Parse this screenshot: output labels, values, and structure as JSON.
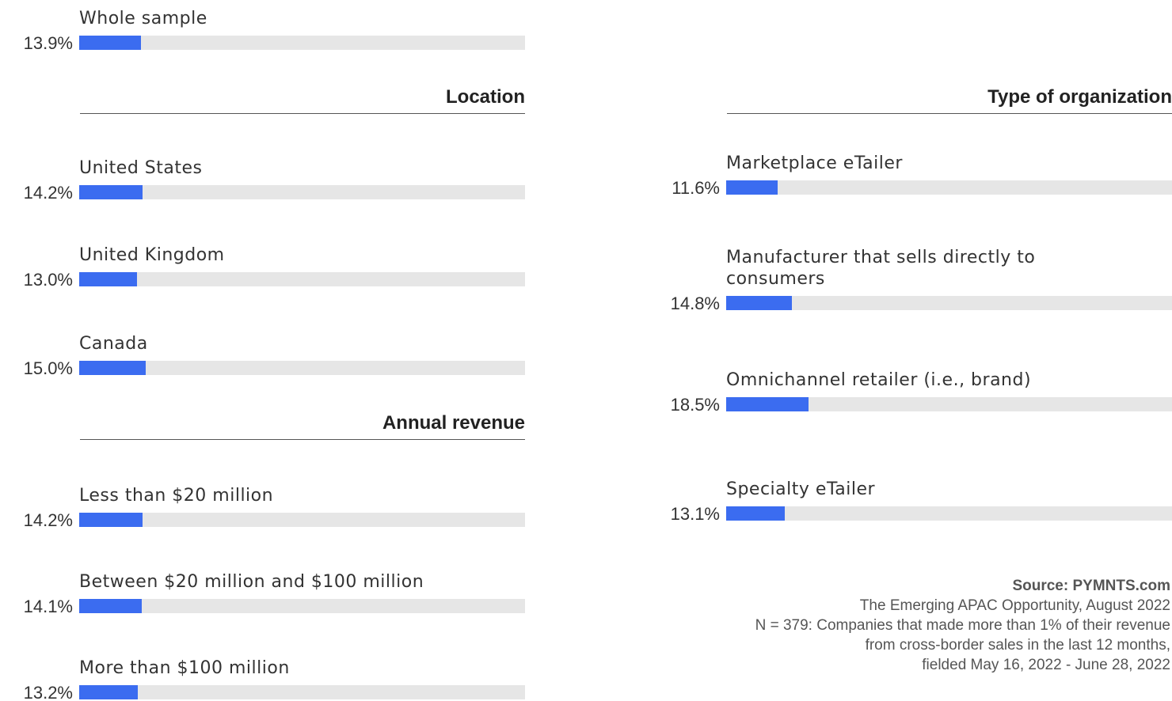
{
  "chart_data": [
    {
      "type": "bar",
      "categories": [
        "Whole sample"
      ],
      "values": [
        13.9
      ],
      "value_labels": [
        "13.9%"
      ],
      "xlim": [
        0,
        100
      ],
      "color": "#3b6cf0"
    },
    {
      "type": "bar",
      "title": "Location",
      "categories": [
        "United States",
        "United Kingdom",
        "Canada"
      ],
      "values": [
        14.2,
        13.0,
        15.0
      ],
      "value_labels": [
        "14.2%",
        "13.0%",
        "15.0%"
      ],
      "xlim": [
        0,
        100
      ],
      "color": "#3b6cf0"
    },
    {
      "type": "bar",
      "title": "Annual revenue",
      "categories": [
        "Less than $20 million",
        "Between $20 million and $100 million",
        "More than $100 million"
      ],
      "values": [
        14.2,
        14.1,
        13.2
      ],
      "value_labels": [
        "14.2%",
        "14.1%",
        "13.2%"
      ],
      "xlim": [
        0,
        100
      ],
      "color": "#3b6cf0"
    },
    {
      "type": "bar",
      "title": "Type of organization",
      "categories": [
        "Marketplace eTailer",
        "Manufacturer that sells directly to consumers",
        "Omnichannel retailer (i.e., brand)",
        "Specialty eTailer"
      ],
      "values": [
        11.6,
        14.8,
        18.5,
        13.1
      ],
      "value_labels": [
        "11.6%",
        "14.8%",
        "18.5%",
        "13.1%"
      ],
      "xlim": [
        0,
        100
      ],
      "color": "#3b6cf0"
    }
  ],
  "footer": {
    "source": "Source: PYMNTS.com",
    "notes": [
      "The Emerging APAC Opportunity, August 2022",
      "N = 379: Companies that made more than 1% of their revenue",
      "from cross-border sales in the last 12 months,",
      "fielded May 16, 2022 - June 28, 2022"
    ]
  }
}
